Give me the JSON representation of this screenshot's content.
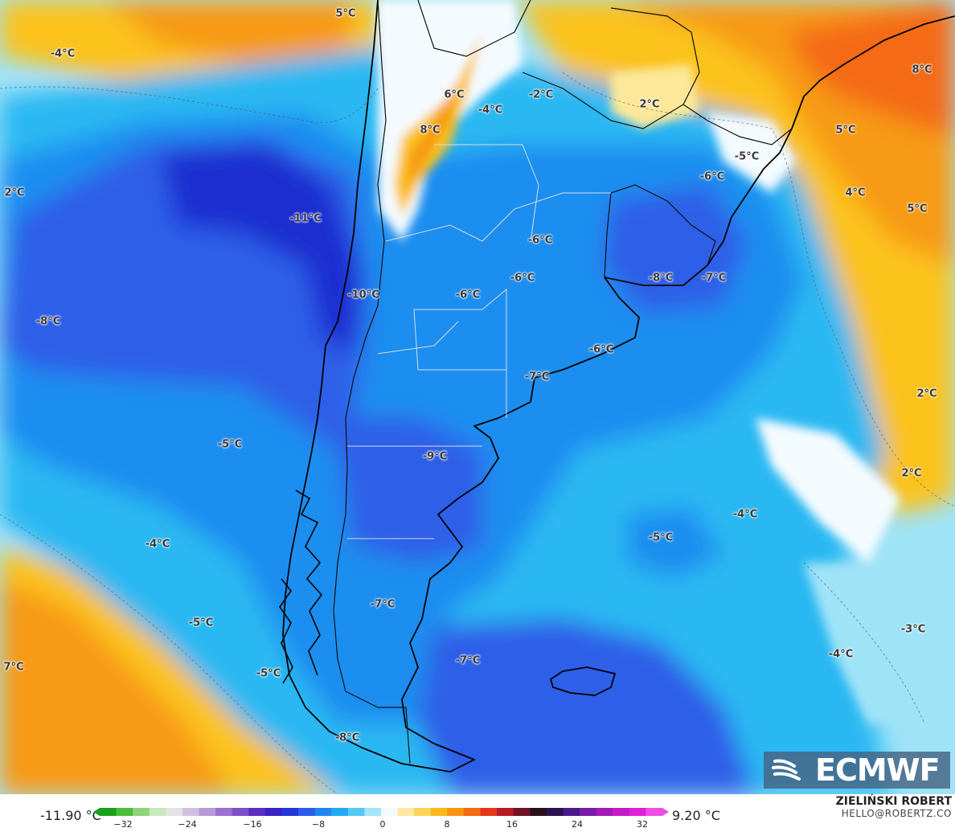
{
  "map": {
    "colors": {
      "deep_blue": "#1a2fd0",
      "blue": "#2d5fe8",
      "mid_blue": "#1e8ef0",
      "light_blue": "#2bb8f2",
      "pale_blue": "#9fe3f7",
      "white": "#f4fbff",
      "pale_yellow": "#fde89a",
      "yellow": "#fbc21a",
      "orange": "#f79a12",
      "red_orange": "#f46a12",
      "land_line": "#000000",
      "border_line": "#e8e8e8"
    },
    "labels": [
      {
        "text": "5°C"
      },
      {
        "text": "-4°C"
      },
      {
        "text": "6°C"
      },
      {
        "text": "-4°C"
      },
      {
        "text": "-2°C"
      },
      {
        "text": "2°C"
      },
      {
        "text": "8°C"
      },
      {
        "text": "8°C"
      },
      {
        "text": "5°C"
      },
      {
        "text": "-5°C"
      },
      {
        "text": "-6°C"
      },
      {
        "text": "2°C"
      },
      {
        "text": "-11°C"
      },
      {
        "text": "4°C"
      },
      {
        "text": "5°C"
      },
      {
        "text": "-6°C"
      },
      {
        "text": "-6°C"
      },
      {
        "text": "-8°C"
      },
      {
        "text": "-7°C"
      },
      {
        "text": "-10°C"
      },
      {
        "text": "-6°C"
      },
      {
        "text": "-8°C"
      },
      {
        "text": "-6°C"
      },
      {
        "text": "-7°C"
      },
      {
        "text": "2°C"
      },
      {
        "text": "-5°C"
      },
      {
        "text": "-9°C"
      },
      {
        "text": "2°C"
      },
      {
        "text": "-4°C"
      },
      {
        "text": "-4°C"
      },
      {
        "text": "-5°C"
      },
      {
        "text": "-7°C"
      },
      {
        "text": "-5°C"
      },
      {
        "text": "-3°C"
      },
      {
        "text": "7°C"
      },
      {
        "text": "-7°C"
      },
      {
        "text": "-4°C"
      },
      {
        "text": "-5°C"
      },
      {
        "text": "-8°C"
      }
    ]
  },
  "branding": {
    "logo_text": "ECMWF",
    "author_name": "ZIELIŃSKI ROBERT",
    "author_email": "HELLO@ROBERTZ.CO"
  },
  "legend": {
    "min_label": "-11.90 °C",
    "max_label": "9.20 °C",
    "ticks": [
      "−32",
      "−24",
      "−16",
      "−8",
      "0",
      "8",
      "16",
      "24",
      "32"
    ],
    "colors": [
      "#1aa01a",
      "#4dbd3a",
      "#8fd47a",
      "#c9e9bd",
      "#e3e3e3",
      "#cfc0e0",
      "#b89ad6",
      "#9c6fd0",
      "#7f4fc8",
      "#5a2fc0",
      "#3a22c4",
      "#2438d6",
      "#2b5ee8",
      "#2285ef",
      "#22a9f2",
      "#55c8f4",
      "#a6e4f7",
      "#f4fbff",
      "#ffe9a0",
      "#fbd35a",
      "#fbb81a",
      "#f79512",
      "#f36a12",
      "#e4361a",
      "#b71c22",
      "#6e1424",
      "#2a1018",
      "#2a1450",
      "#4a1a8a",
      "#7a1aa8",
      "#a41ab8",
      "#c81ac8",
      "#e020d8",
      "#f04ce4"
    ]
  }
}
